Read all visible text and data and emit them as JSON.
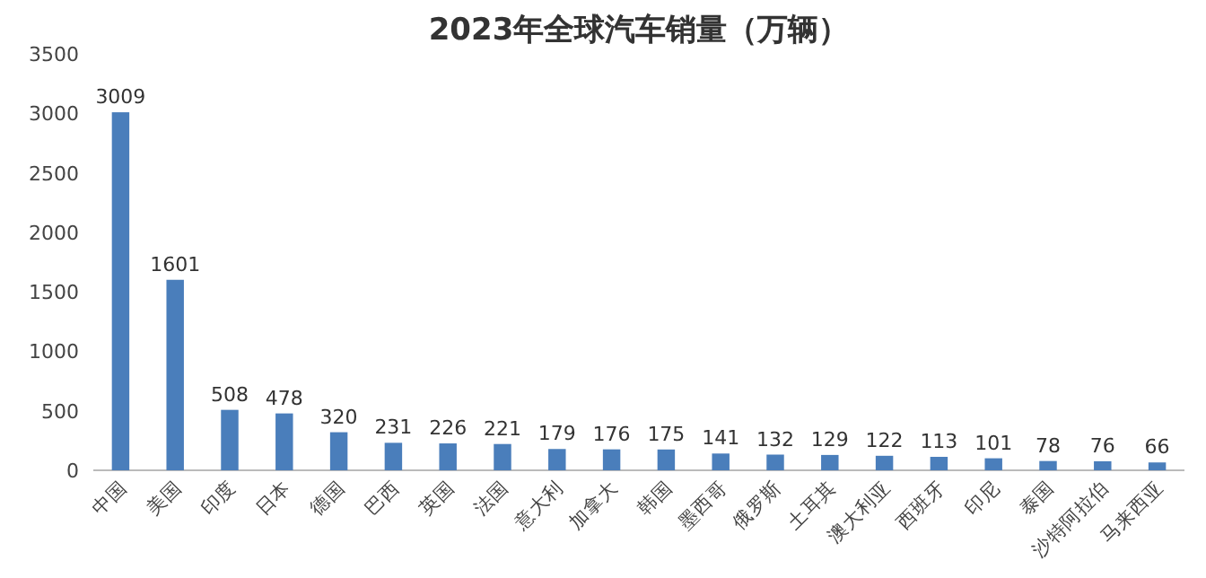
{
  "chart_data": {
    "type": "bar",
    "title": "2023年全球汽车销量（万辆）",
    "categories": [
      "中国",
      "美国",
      "印度",
      "日本",
      "德国",
      "巴西",
      "英国",
      "法国",
      "意大利",
      "加拿大",
      "韩国",
      "墨西哥",
      "俄罗斯",
      "土耳其",
      "澳大利亚",
      "西班牙",
      "印尼",
      "泰国",
      "沙特阿拉伯",
      "马来西亚"
    ],
    "values": [
      3009,
      1601,
      508,
      478,
      320,
      231,
      226,
      221,
      179,
      176,
      175,
      141,
      132,
      129,
      122,
      113,
      101,
      78,
      76,
      66
    ],
    "color": "#4a7ebb",
    "ylim": [
      0,
      3500
    ],
    "yticks": [
      0,
      500,
      1000,
      1500,
      2000,
      2500,
      3000,
      3500
    ],
    "data_labels": true
  }
}
